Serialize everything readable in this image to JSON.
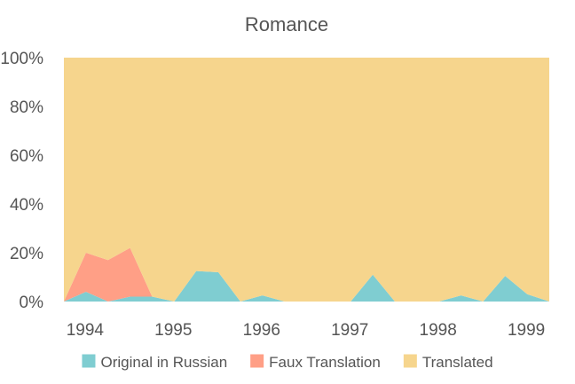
{
  "chart_data": {
    "type": "area",
    "stacked": true,
    "normalized": true,
    "title": "Romance",
    "xlabel": "",
    "ylabel": "",
    "x": [
      1993.75,
      1994.0,
      1994.25,
      1994.5,
      1994.75,
      1995.0,
      1995.25,
      1995.5,
      1995.75,
      1996.0,
      1996.25,
      1996.5,
      1996.75,
      1997.0,
      1997.25,
      1997.5,
      1997.75,
      1998.0,
      1998.25,
      1998.5,
      1998.75,
      1999.0,
      1999.25
    ],
    "xlim": [
      1993.75,
      1999.25
    ],
    "xticks": [
      1994,
      1995,
      1996,
      1997,
      1998,
      1999
    ],
    "xtick_labels": [
      "1994",
      "1995",
      "1996",
      "1997",
      "1998",
      "1999"
    ],
    "ylim": [
      0,
      100
    ],
    "yticks": [
      0,
      20,
      40,
      60,
      80,
      100
    ],
    "ytick_labels": [
      "0%",
      "20%",
      "40%",
      "60%",
      "80%",
      "100%"
    ],
    "series": [
      {
        "name": "Original in Russian",
        "color": "#7fcdd1",
        "values": [
          0,
          4,
          0,
          2,
          2,
          0,
          12.5,
          12,
          0,
          2.5,
          0,
          0,
          0,
          0,
          11,
          0,
          0,
          0,
          2.5,
          0,
          10.5,
          3,
          0
        ]
      },
      {
        "name": "Faux Translation",
        "color": "#ff9f86",
        "values": [
          0,
          16,
          17,
          20,
          0,
          0,
          0,
          0,
          0,
          0,
          0,
          0,
          0,
          0,
          0,
          0,
          0,
          0,
          0,
          0,
          0,
          0,
          0
        ]
      },
      {
        "name": "Translated",
        "color": "#f6d58d",
        "values": [
          100,
          80,
          83,
          78,
          98,
          100,
          87.5,
          88,
          100,
          97.5,
          100,
          100,
          100,
          100,
          89,
          100,
          100,
          100,
          97.5,
          100,
          89.5,
          97,
          100
        ]
      }
    ],
    "legend_position": "bottom",
    "grid": false
  }
}
